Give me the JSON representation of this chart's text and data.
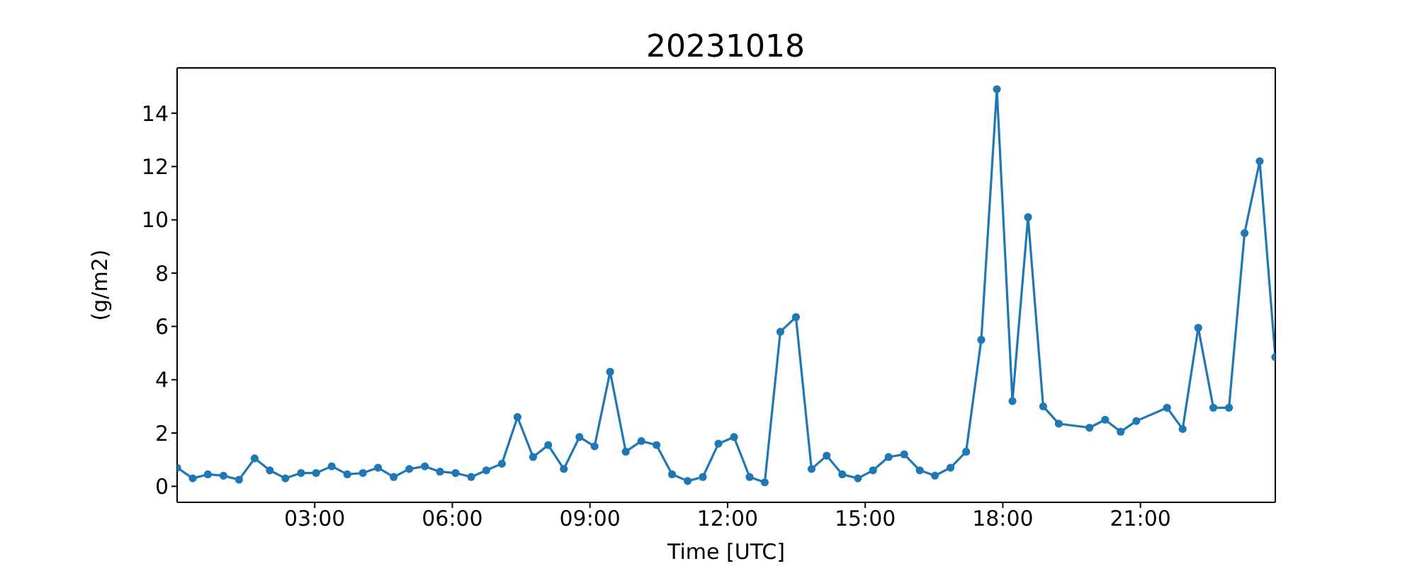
{
  "chart_data": {
    "type": "line",
    "title": "20231018",
    "xlabel": "Time [UTC]",
    "ylabel": "(g/m2)",
    "xlim": [
      0,
      23.94
    ],
    "xticks": [
      {
        "value": 3,
        "label": "03:00"
      },
      {
        "value": 6,
        "label": "06:00"
      },
      {
        "value": 9,
        "label": "09:00"
      },
      {
        "value": 12,
        "label": "12:00"
      },
      {
        "value": 15,
        "label": "15:00"
      },
      {
        "value": 18,
        "label": "18:00"
      },
      {
        "value": 21,
        "label": "21:00"
      }
    ],
    "ylim": [
      -0.6,
      15.7
    ],
    "yticks": [
      0,
      2,
      4,
      6,
      8,
      10,
      12,
      14
    ],
    "grid": false,
    "marker": "circle",
    "line_style": "solid",
    "series": [
      {
        "color": "#1f77b4",
        "x": [
          0,
          0.34,
          0.67,
          1.01,
          1.35,
          1.69,
          2.02,
          2.36,
          2.7,
          3.03,
          3.37,
          3.71,
          4.05,
          4.38,
          4.72,
          5.06,
          5.4,
          5.73,
          6.07,
          6.41,
          6.74,
          7.08,
          7.42,
          7.76,
          8.09,
          8.43,
          8.77,
          9.1,
          9.44,
          9.78,
          10.12,
          10.45,
          10.79,
          11.13,
          11.46,
          11.8,
          12.14,
          12.48,
          12.81,
          13.15,
          13.49,
          13.83,
          14.16,
          14.5,
          14.84,
          15.17,
          15.51,
          15.85,
          16.19,
          16.52,
          16.86,
          17.2,
          17.53,
          17.87,
          18.21,
          18.55,
          18.88,
          19.22,
          19.89,
          20.23,
          20.57,
          20.91,
          21.58,
          21.92,
          22.26,
          22.59,
          22.93,
          23.27,
          23.6,
          23.94
        ],
        "values": [
          0.7,
          0.3,
          0.45,
          0.4,
          0.25,
          1.05,
          0.6,
          0.3,
          0.5,
          0.5,
          0.75,
          0.45,
          0.5,
          0.7,
          0.35,
          0.65,
          0.75,
          0.55,
          0.5,
          0.35,
          0.6,
          0.85,
          2.6,
          1.1,
          1.55,
          0.65,
          1.85,
          1.5,
          4.3,
          1.3,
          1.7,
          1.55,
          0.45,
          0.2,
          0.35,
          1.6,
          1.85,
          0.35,
          0.15,
          5.8,
          6.35,
          0.65,
          1.15,
          0.45,
          0.3,
          0.6,
          1.1,
          1.2,
          0.6,
          0.4,
          0.7,
          1.3,
          5.5,
          14.9,
          3.2,
          10.1,
          3.0,
          2.35,
          2.2,
          2.5,
          2.05,
          2.45,
          2.95,
          2.15,
          5.95,
          2.95,
          2.95,
          9.5,
          12.2,
          4.85
        ]
      }
    ]
  }
}
